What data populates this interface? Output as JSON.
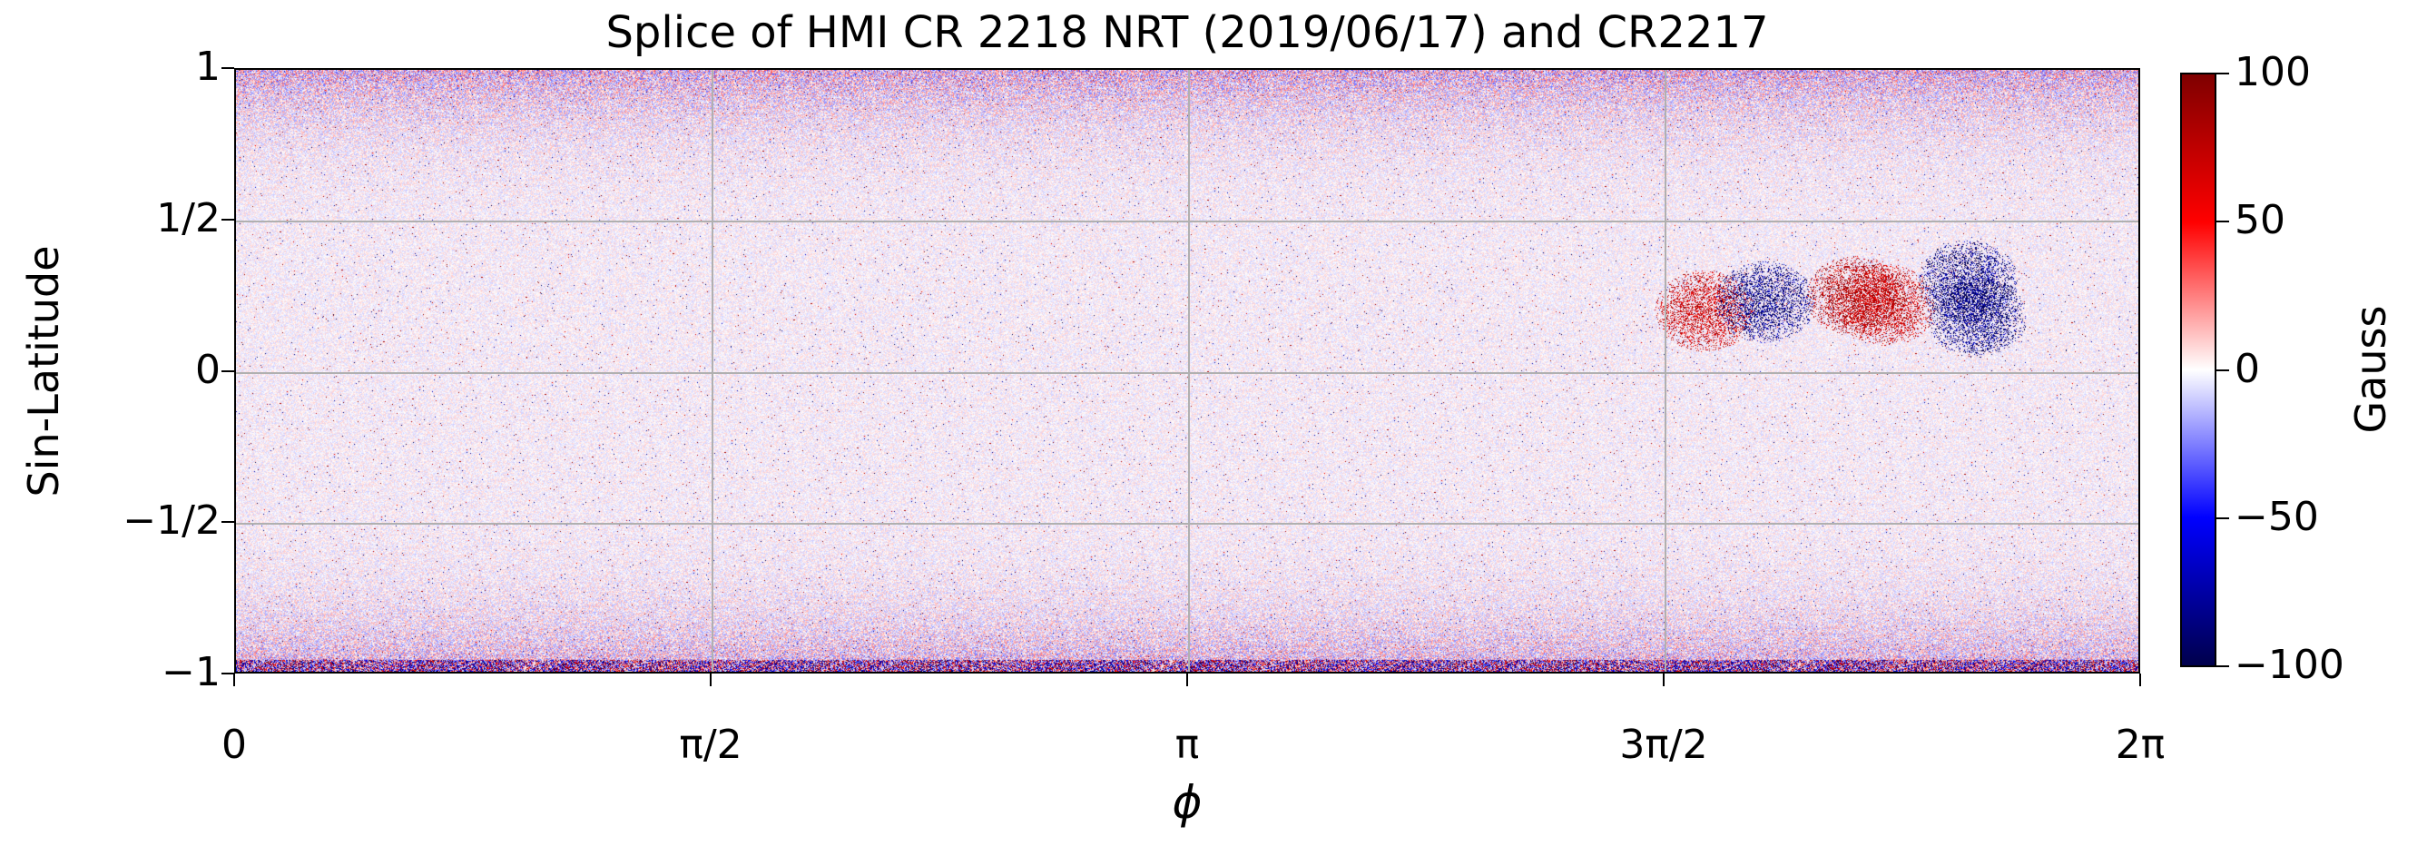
{
  "chart_data": {
    "type": "heatmap",
    "title": "Splice of HMI CR 2218 NRT (2019/06/17) and CR2217",
    "xlabel": "ϕ",
    "ylabel": "Sin-Latitude",
    "x_range": [
      0,
      6.2832
    ],
    "y_range": [
      -1,
      1
    ],
    "x_ticks": [
      {
        "value": 0,
        "label": "0"
      },
      {
        "value": 1.5708,
        "label": "π/2"
      },
      {
        "value": 3.1416,
        "label": "π"
      },
      {
        "value": 4.7124,
        "label": "3π/2"
      },
      {
        "value": 6.2832,
        "label": "2π"
      }
    ],
    "y_ticks": [
      {
        "value": 1,
        "label": "1"
      },
      {
        "value": 0.5,
        "label": "1/2"
      },
      {
        "value": 0,
        "label": "0"
      },
      {
        "value": -0.5,
        "label": "−1/2"
      },
      {
        "value": -1,
        "label": "−1"
      }
    ],
    "grid": true,
    "colorbar": {
      "label": "Gauss",
      "range": [
        -100,
        100
      ],
      "ticks": [
        {
          "value": 100,
          "label": "100"
        },
        {
          "value": 50,
          "label": "50"
        },
        {
          "value": 0,
          "label": "0"
        },
        {
          "value": -50,
          "label": "−50"
        },
        {
          "value": -100,
          "label": "−100"
        }
      ],
      "colormap": "seismic",
      "colors": [
        "#00004c",
        "#0000ff",
        "#ffffff",
        "#ff0000",
        "#7f0000"
      ]
    },
    "features": [
      {
        "phi": 4.85,
        "sin_lat": 0.2,
        "gauss": 80
      },
      {
        "phi": 5.05,
        "sin_lat": 0.23,
        "gauss": -100
      },
      {
        "phi": 5.35,
        "sin_lat": 0.25,
        "gauss": 90
      },
      {
        "phi": 5.45,
        "sin_lat": 0.22,
        "gauss": 80
      },
      {
        "phi": 5.75,
        "sin_lat": 0.18,
        "gauss": -100
      },
      {
        "phi": 5.72,
        "sin_lat": 0.3,
        "gauss": -100
      }
    ]
  }
}
